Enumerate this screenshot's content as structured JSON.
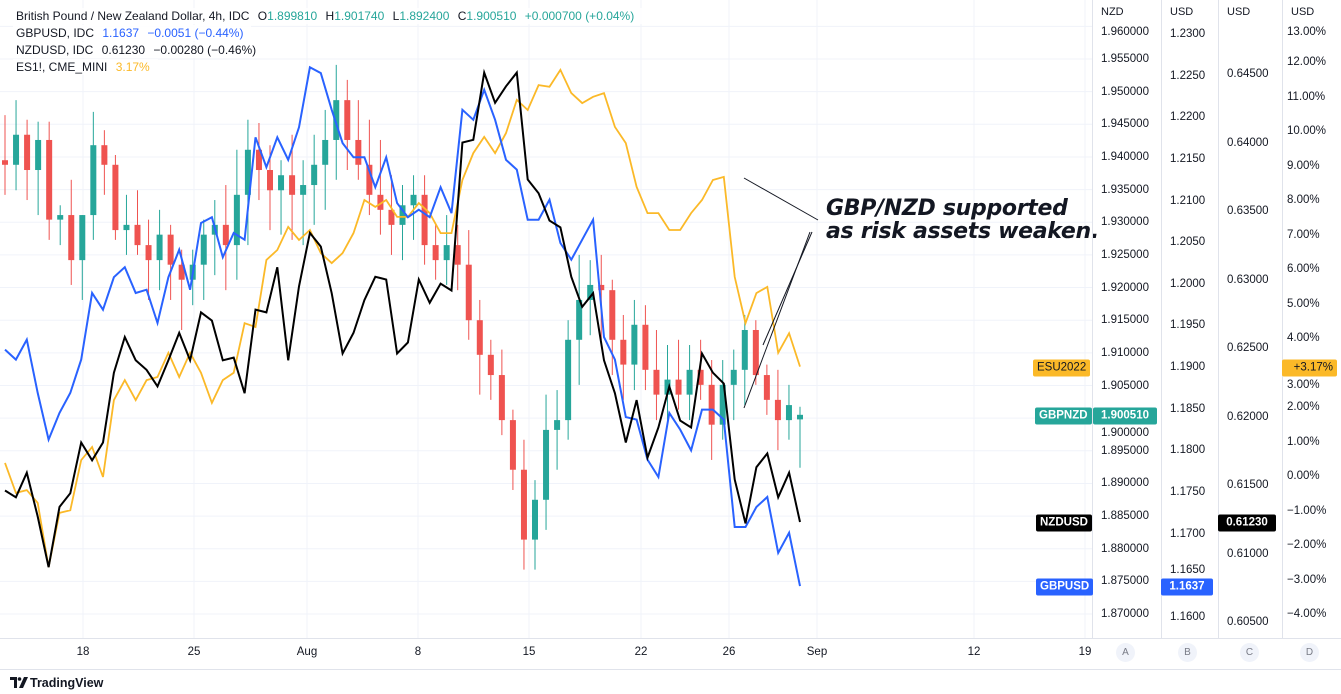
{
  "legend": {
    "main": {
      "title": "British Pound / New Zealand Dollar, 4h, IDC",
      "o_label": "O",
      "o": "1.899810",
      "h_label": "H",
      "h": "1.901740",
      "l_label": "L",
      "l": "1.892400",
      "c_label": "C",
      "c": "1.900510",
      "change": "+0.000700 (+0.04%)"
    },
    "gbpusd": {
      "name": "GBPUSD, IDC",
      "value": "1.1637",
      "change": "−0.0051 (−0.44%)"
    },
    "nzdusd": {
      "name": "NZDUSD, IDC",
      "value": "0.61230",
      "change": "−0.00280 (−0.46%)"
    },
    "es": {
      "name": "ES1!, CME_MINI",
      "value": "3.17%"
    }
  },
  "axes": {
    "A": {
      "unit": "NZD",
      "ticks": [
        "1.960000",
        "1.955000",
        "1.950000",
        "1.945000",
        "1.940000",
        "1.935000",
        "1.930000",
        "1.925000",
        "1.920000",
        "1.915000",
        "1.910000",
        "1.905000",
        "1.900000",
        "1.895000",
        "1.890000",
        "1.885000",
        "1.880000",
        "1.875000",
        "1.870000"
      ]
    },
    "B": {
      "unit": "USD",
      "ticks": [
        "1.2300",
        "1.2250",
        "1.2200",
        "1.2150",
        "1.2100",
        "1.2050",
        "1.2000",
        "1.1950",
        "1.1900",
        "1.1850",
        "1.1800",
        "1.1750",
        "1.1700",
        "1.1650",
        "1.1600"
      ]
    },
    "C": {
      "unit": "USD",
      "ticks": [
        "0.64500",
        "0.64000",
        "0.63500",
        "0.63000",
        "0.62500",
        "0.62000",
        "0.61500",
        "0.61000",
        "0.60500"
      ]
    },
    "D": {
      "unit": "USD",
      "ticks": [
        "13.00%",
        "12.00%",
        "11.00%",
        "10.00%",
        "9.00%",
        "8.00%",
        "7.00%",
        "6.00%",
        "5.00%",
        "4.00%",
        "3.00%",
        "2.00%",
        "1.00%",
        "0.00%",
        "−1.00%",
        "−2.00%",
        "−3.00%",
        "−4.00%"
      ]
    }
  },
  "time_axis": {
    "ticks": [
      "18",
      "25",
      "Aug",
      "8",
      "15",
      "22",
      "26",
      "Sep",
      "12",
      "19"
    ]
  },
  "scale_buttons": [
    "A",
    "B",
    "C",
    "D"
  ],
  "tags": {
    "es": {
      "label": "ESU2022",
      "value": "+3.17%"
    },
    "gbpnzd": {
      "label": "GBPNZD",
      "value": "1.900510"
    },
    "nzdusd": {
      "label": "NZDUSD",
      "value": "0.61230"
    },
    "gbpusd": {
      "label": "GBPUSD",
      "value": "1.1637"
    }
  },
  "annotation": {
    "line1": "GBP/NZD supported",
    "line2": "as risk assets weaken."
  },
  "footer": {
    "brand": "TradingView"
  },
  "colors": {
    "up": "#26a69a",
    "down": "#ef5350",
    "gbpusd": "#2962ff",
    "nzdusd": "#000000",
    "es": "#fbb928",
    "text": "#131722",
    "grid": "#f0f3fa"
  },
  "chart_data": {
    "type": "candlestick+line",
    "interval": "4h",
    "x_ticks": [
      "18",
      "25",
      "Aug",
      "8",
      "15",
      "22",
      "26",
      "Sep",
      "12",
      "19"
    ],
    "series": [
      {
        "name": "GBPNZD",
        "type": "candlestick",
        "axis": "A",
        "ohlc": [
          [
            1.9395,
            1.9464,
            1.9342,
            1.9388
          ],
          [
            1.9388,
            1.9487,
            1.9349,
            1.9434
          ],
          [
            1.9434,
            1.9457,
            1.9334,
            1.938
          ],
          [
            1.938,
            1.9454,
            1.9311,
            1.9426
          ],
          [
            1.9426,
            1.9454,
            1.9273,
            1.9304
          ],
          [
            1.9304,
            1.9326,
            1.9265,
            1.9311
          ],
          [
            1.9311,
            1.9365,
            1.9204,
            1.9242
          ],
          [
            1.9242,
            1.9311,
            1.9181,
            1.9311
          ],
          [
            1.9311,
            1.9469,
            1.9273,
            1.9418
          ],
          [
            1.9418,
            1.9441,
            1.9342,
            1.9388
          ],
          [
            1.9388,
            1.9403,
            1.9273,
            1.9288
          ],
          [
            1.9288,
            1.9342,
            1.925,
            1.9296
          ],
          [
            1.9296,
            1.9349,
            1.925,
            1.9265
          ],
          [
            1.9265,
            1.9304,
            1.9181,
            1.9242
          ],
          [
            1.9242,
            1.9319,
            1.9196,
            1.9281
          ],
          [
            1.9281,
            1.9296,
            1.9181,
            1.9235
          ],
          [
            1.9235,
            1.9258,
            1.9135,
            1.9212
          ],
          [
            1.9212,
            1.9258,
            1.9173,
            1.9235
          ],
          [
            1.9235,
            1.9304,
            1.9181,
            1.9281
          ],
          [
            1.9281,
            1.9334,
            1.9219,
            1.9296
          ],
          [
            1.9296,
            1.9357,
            1.9196,
            1.9265
          ],
          [
            1.9265,
            1.9411,
            1.9212,
            1.9342
          ],
          [
            1.9342,
            1.9457,
            1.9265,
            1.9411
          ],
          [
            1.9411,
            1.9452,
            1.9334,
            1.938
          ],
          [
            1.938,
            1.9418,
            1.9288,
            1.9349
          ],
          [
            1.9349,
            1.9395,
            1.9281,
            1.9372
          ],
          [
            1.9372,
            1.9434,
            1.9273,
            1.9342
          ],
          [
            1.9342,
            1.9395,
            1.9265,
            1.9357
          ],
          [
            1.9357,
            1.9434,
            1.9296,
            1.9388
          ],
          [
            1.9388,
            1.9472,
            1.9319,
            1.9426
          ],
          [
            1.9426,
            1.9541,
            1.9365,
            1.9487
          ],
          [
            1.9487,
            1.9518,
            1.938,
            1.9426
          ],
          [
            1.9426,
            1.9487,
            1.9365,
            1.9388
          ],
          [
            1.9388,
            1.9457,
            1.9311,
            1.9342
          ],
          [
            1.9342,
            1.9426,
            1.9281,
            1.9319
          ],
          [
            1.9319,
            1.9372,
            1.925,
            1.9296
          ],
          [
            1.9296,
            1.9357,
            1.9242,
            1.9326
          ],
          [
            1.9326,
            1.9372,
            1.9273,
            1.9342
          ],
          [
            1.9342,
            1.9372,
            1.9235,
            1.9265
          ],
          [
            1.9265,
            1.9296,
            1.9212,
            1.9242
          ],
          [
            1.9242,
            1.9311,
            1.9204,
            1.9265
          ],
          [
            1.9265,
            1.9296,
            1.9196,
            1.9235
          ],
          [
            1.9235,
            1.9288,
            1.912,
            1.915
          ],
          [
            1.915,
            1.9181,
            1.9036,
            1.9097
          ],
          [
            1.9097,
            1.912,
            1.9028,
            1.9066
          ],
          [
            1.9066,
            1.9105,
            1.8974,
            1.8997
          ],
          [
            1.8997,
            1.9013,
            1.889,
            1.8921
          ],
          [
            1.8921,
            1.8967,
            1.8768,
            1.8814
          ],
          [
            1.8814,
            1.8905,
            1.8768,
            1.8875
          ],
          [
            1.8875,
            1.9036,
            1.8829,
            1.8982
          ],
          [
            1.8982,
            1.9043,
            1.8921,
            1.8997
          ],
          [
            1.8997,
            1.915,
            1.8967,
            1.912
          ],
          [
            1.912,
            1.925,
            1.9051,
            1.9181
          ],
          [
            1.9181,
            1.9242,
            1.9127,
            1.9204
          ],
          [
            1.9204,
            1.925,
            1.912,
            1.9196
          ],
          [
            1.9196,
            1.9212,
            1.9066,
            1.912
          ],
          [
            1.912,
            1.9158,
            1.9028,
            1.9082
          ],
          [
            1.9082,
            1.9181,
            1.9043,
            1.9143
          ],
          [
            1.9143,
            1.9173,
            1.9043,
            1.9074
          ],
          [
            1.9074,
            1.9135,
            1.8997,
            1.9036
          ],
          [
            1.9036,
            1.9112,
            1.8997,
            1.9059
          ],
          [
            1.9059,
            1.912,
            1.9013,
            1.9036
          ],
          [
            1.9036,
            1.9112,
            1.8997,
            1.9074
          ],
          [
            1.9074,
            1.912,
            1.9028,
            1.9051
          ],
          [
            1.9051,
            1.9089,
            1.8936,
            1.899
          ],
          [
            1.899,
            1.9089,
            1.8967,
            1.9051
          ],
          [
            1.9051,
            1.9105,
            1.8997,
            1.9074
          ],
          [
            1.9074,
            1.9158,
            1.902,
            1.9135
          ],
          [
            1.9135,
            1.915,
            1.9051,
            1.9066
          ],
          [
            1.9066,
            1.9082,
            1.9005,
            1.9028
          ],
          [
            1.9028,
            1.9074,
            1.8951,
            1.8997
          ],
          [
            1.8997,
            1.9051,
            1.8967,
            1.902
          ],
          [
            1.89981,
            1.90174,
            1.8924,
            1.90051
          ]
        ]
      },
      {
        "name": "GBPUSD",
        "type": "line",
        "axis": "B",
        "values": [
          1.1921,
          1.1909,
          1.1933,
          1.1869,
          1.1813,
          1.1845,
          1.1869,
          1.1909,
          1.1989,
          1.1969,
          1.2008,
          1.202,
          1.1989,
          1.1993,
          1.1953,
          1.2008,
          1.2041,
          1.1993,
          1.2073,
          1.208,
          1.2032,
          1.2061,
          1.2053,
          1.2176,
          1.214,
          1.2176,
          1.2149,
          1.2188,
          1.226,
          1.2253,
          1.2209,
          1.2169,
          1.2152,
          1.2152,
          1.2116,
          1.2152,
          1.2097,
          1.208,
          1.2089,
          1.208,
          1.2116,
          1.2085,
          1.2209,
          1.2197,
          1.2233,
          1.2197,
          1.2149,
          1.2137,
          1.2077,
          1.2077,
          1.2101,
          1.2049,
          1.2029,
          1.2053,
          1.2077,
          1.1936,
          1.1909,
          1.184,
          1.1837,
          1.1789,
          1.1768,
          1.1845,
          1.1825,
          1.18,
          1.1849,
          1.1849,
          1.1837,
          1.1708,
          1.1708,
          1.1732,
          1.1744,
          1.1677,
          1.1701,
          1.1637
        ]
      },
      {
        "name": "NZDUSD",
        "type": "line",
        "axis": "C",
        "values": [
          0.6146,
          0.6141,
          0.6159,
          0.6127,
          0.609,
          0.6134,
          0.6144,
          0.6181,
          0.6168,
          0.6181,
          0.6232,
          0.6258,
          0.6241,
          0.6234,
          0.6222,
          0.6241,
          0.6261,
          0.6241,
          0.6276,
          0.627,
          0.6241,
          0.6243,
          0.6217,
          0.6278,
          0.6276,
          0.6309,
          0.6241,
          0.6295,
          0.6334,
          0.6324,
          0.629,
          0.6246,
          0.6261,
          0.6285,
          0.6302,
          0.63,
          0.6246,
          0.6254,
          0.63,
          0.6283,
          0.6297,
          0.6292,
          0.64,
          0.6402,
          0.6451,
          0.6429,
          0.6441,
          0.6451,
          0.6373,
          0.6363,
          0.6343,
          0.6338,
          0.6302,
          0.628,
          0.629,
          0.6241,
          0.6217,
          0.6181,
          0.6212,
          0.617,
          0.6192,
          0.6222,
          0.6197,
          0.6192,
          0.6246,
          0.6232,
          0.6224,
          0.6154,
          0.6122,
          0.6163,
          0.6173,
          0.6141,
          0.6159,
          0.6123
        ]
      },
      {
        "name": "ES1!",
        "type": "line",
        "axis": "D",
        "unit": "%",
        "values": [
          0.38,
          -0.49,
          -0.41,
          -0.78,
          -2.64,
          -1.07,
          -0.99,
          0.46,
          0.84,
          -0.03,
          2.2,
          2.78,
          2.2,
          2.78,
          2.87,
          3.57,
          2.87,
          3.57,
          2.99,
          2.12,
          2.78,
          2.99,
          4.43,
          4.32,
          6.26,
          6.55,
          7.22,
          6.84,
          7.13,
          6.46,
          6.17,
          6.46,
          7.04,
          8.0,
          7.8,
          8.0,
          7.51,
          7.51,
          7.91,
          7.62,
          7.04,
          7.04,
          8.58,
          9.36,
          9.83,
          9.36,
          9.94,
          10.9,
          10.61,
          11.33,
          11.28,
          11.77,
          11.1,
          10.81,
          10.99,
          11.1,
          10.12,
          9.65,
          8.38,
          7.62,
          7.62,
          7.13,
          7.13,
          7.62,
          8.0,
          8.58,
          8.67,
          5.77,
          4.43,
          5.3,
          5.48,
          3.57,
          4.14,
          3.17
        ]
      }
    ],
    "grid": true
  }
}
